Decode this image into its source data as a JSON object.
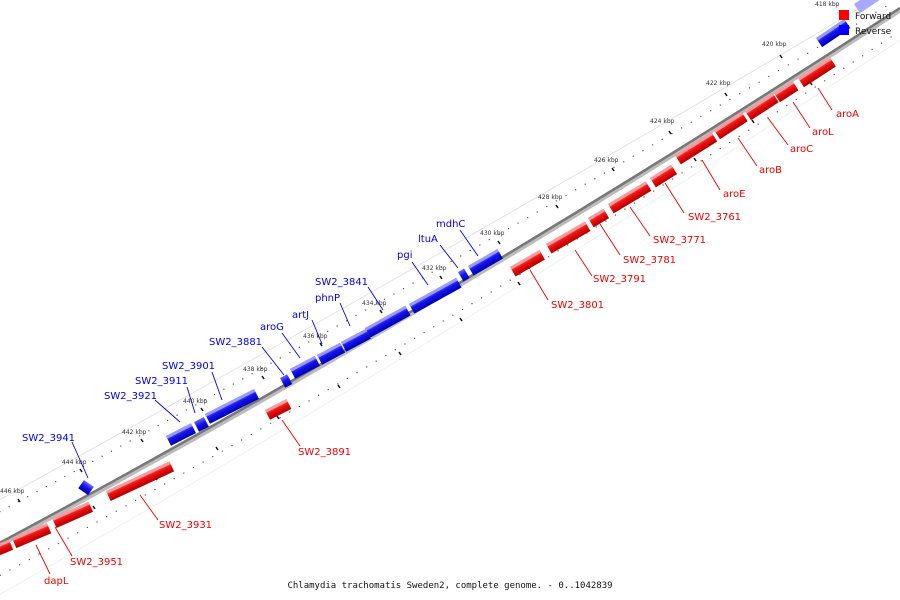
{
  "caption": "Chlamydia trachomatis Sweden2, complete genome. - 0..1042839",
  "legend": [
    {
      "label": "Forward",
      "color": "#ff0000"
    },
    {
      "label": "Reverse",
      "color": "#0000ff"
    }
  ],
  "colors": {
    "forward": "#ff0000",
    "reverse": "#0000ff",
    "backbone": "#777777"
  },
  "ticks": [
    "418 kbp",
    "420 kbp",
    "422 kbp",
    "424 kbp",
    "426 kbp",
    "428 kbp",
    "430 kbp",
    "432 kbp",
    "434 kbp",
    "436 kbp",
    "438 kbp",
    "440 kbp",
    "442 kbp",
    "444 kbp",
    "446 kbp"
  ],
  "genes": [
    {
      "name": "aroA",
      "strand": "forward"
    },
    {
      "name": "aroL",
      "strand": "forward"
    },
    {
      "name": "aroC",
      "strand": "forward"
    },
    {
      "name": "aroB",
      "strand": "forward"
    },
    {
      "name": "aroE",
      "strand": "forward"
    },
    {
      "name": "SW2_3761",
      "strand": "forward"
    },
    {
      "name": "SW2_3771",
      "strand": "forward"
    },
    {
      "name": "SW2_3781",
      "strand": "forward"
    },
    {
      "name": "SW2_3791",
      "strand": "forward"
    },
    {
      "name": "SW2_3801",
      "strand": "forward"
    },
    {
      "name": "mdhC",
      "strand": "reverse"
    },
    {
      "name": "ltuA",
      "strand": "reverse"
    },
    {
      "name": "pgi",
      "strand": "reverse"
    },
    {
      "name": "SW2_3841",
      "strand": "reverse"
    },
    {
      "name": "phnP",
      "strand": "reverse"
    },
    {
      "name": "artJ",
      "strand": "reverse"
    },
    {
      "name": "aroG",
      "strand": "reverse"
    },
    {
      "name": "SW2_3881",
      "strand": "reverse"
    },
    {
      "name": "SW2_3891",
      "strand": "forward"
    },
    {
      "name": "SW2_3901",
      "strand": "reverse"
    },
    {
      "name": "SW2_3911",
      "strand": "reverse"
    },
    {
      "name": "SW2_3921",
      "strand": "reverse"
    },
    {
      "name": "SW2_3931",
      "strand": "forward"
    },
    {
      "name": "SW2_3941",
      "strand": "reverse"
    },
    {
      "name": "SW2_3951",
      "strand": "forward"
    },
    {
      "name": "dapL",
      "strand": "forward"
    }
  ]
}
